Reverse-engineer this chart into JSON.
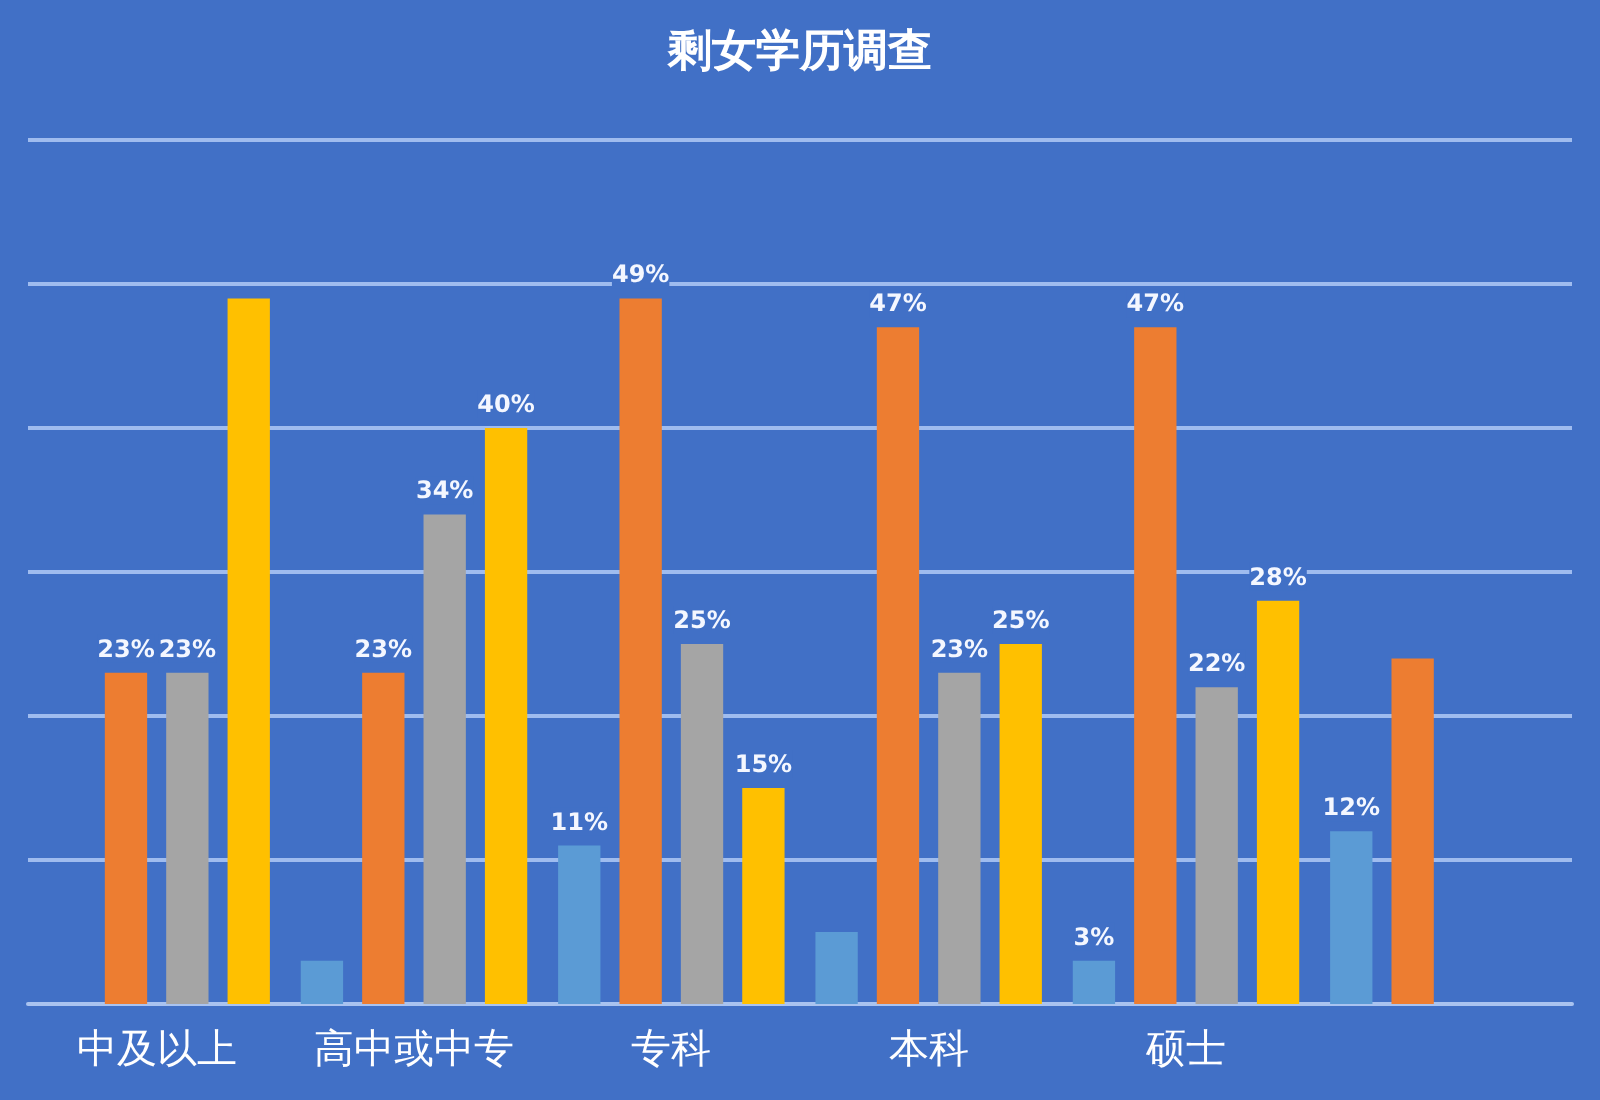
{
  "chart_data": {
    "type": "bar",
    "title": "剩女学历调查",
    "categories": [
      "中及以上",
      "高中或中专",
      "专科",
      "本科",
      "硕士",
      null
    ],
    "series": [
      {
        "color": "#5b9bd5",
        "values": [
          null,
          3,
          11,
          5,
          3,
          12
        ],
        "value_labels": [
          null,
          null,
          "11%",
          null,
          "3%",
          "12%"
        ]
      },
      {
        "color": "#ed7d31",
        "values": [
          23,
          23,
          49,
          47,
          47,
          24
        ],
        "value_labels": [
          "23%",
          "23%",
          "49%",
          "47%",
          "47%",
          null
        ]
      },
      {
        "color": "#a5a5a5",
        "values": [
          23,
          34,
          25,
          23,
          22,
          null
        ],
        "value_labels": [
          "23%",
          "34%",
          "25%",
          "23%",
          "22%",
          null
        ]
      },
      {
        "color": "#ffc000",
        "values": [
          49,
          40,
          15,
          25,
          28,
          null
        ],
        "value_labels": [
          null,
          "40%",
          "15%",
          "25%",
          "28%",
          null
        ]
      }
    ],
    "ylim": [
      0,
      60
    ],
    "yticks": [
      {
        "value": 0,
        "label": null
      },
      {
        "value": 10,
        "label": null
      },
      {
        "value": 20,
        "label": null
      },
      {
        "value": 30,
        "label": null
      },
      {
        "value": 40,
        "label": null
      },
      {
        "value": 50,
        "label": null
      },
      {
        "value": 60,
        "label": null
      }
    ],
    "grid": "y",
    "tick_labels": "x"
  }
}
